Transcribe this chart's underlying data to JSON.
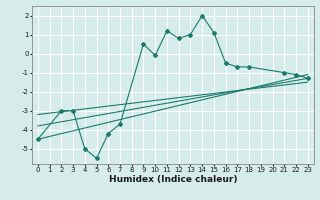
{
  "xlabel": "Humidex (Indice chaleur)",
  "ylabel": "",
  "xlim": [
    -0.5,
    23.5
  ],
  "ylim": [
    -5.8,
    2.5
  ],
  "yticks": [
    2,
    1,
    0,
    -1,
    -2,
    -3,
    -4,
    -5
  ],
  "xticks": [
    0,
    1,
    2,
    3,
    4,
    5,
    6,
    7,
    8,
    9,
    10,
    11,
    12,
    13,
    14,
    15,
    16,
    17,
    18,
    19,
    20,
    21,
    22,
    23
  ],
  "bg_color": "#d6ecea",
  "grid_color": "#ffffff",
  "line_color": "#1a7a6e",
  "line1_x": [
    0,
    2,
    3,
    4,
    5,
    6,
    7,
    9,
    10,
    11,
    12,
    13,
    14,
    15,
    16,
    17,
    18,
    21,
    22,
    23
  ],
  "line1_y": [
    -4.5,
    -3.0,
    -3.0,
    -5.0,
    -5.5,
    -4.2,
    -3.7,
    0.5,
    -0.1,
    1.2,
    0.8,
    1.0,
    2.0,
    1.1,
    -0.5,
    -0.7,
    -0.7,
    -1.0,
    -1.1,
    -1.3
  ],
  "line2_x": [
    0,
    23
  ],
  "line2_y": [
    -4.5,
    -1.1
  ],
  "line3_x": [
    0,
    23
  ],
  "line3_y": [
    -3.8,
    -1.3
  ],
  "line4_x": [
    0,
    23
  ],
  "line4_y": [
    -3.2,
    -1.5
  ],
  "marker": "D",
  "marker_size": 2,
  "linewidth": 0.8,
  "xlabel_fontsize": 6.5,
  "tick_fontsize": 5.0
}
